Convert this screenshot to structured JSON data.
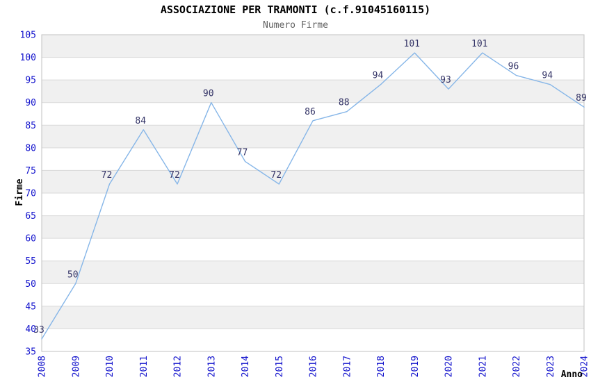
{
  "header": {
    "title": "ASSOCIAZIONE PER TRAMONTI (c.f.91045160115)",
    "subtitle": "Numero Firme"
  },
  "chart_data": {
    "type": "line",
    "title": "ASSOCIAZIONE PER TRAMONTI (c.f.91045160115)",
    "subtitle": "Numero Firme",
    "xlabel": "Anno",
    "ylabel": "Firme",
    "categories": [
      2008,
      2009,
      2010,
      2011,
      2012,
      2013,
      2014,
      2015,
      2016,
      2017,
      2018,
      2019,
      2020,
      2021,
      2022,
      2023,
      2024
    ],
    "values": [
      33,
      50,
      72,
      84,
      72,
      90,
      77,
      72,
      86,
      88,
      94,
      101,
      93,
      101,
      96,
      94,
      89
    ],
    "ylim": [
      35,
      105
    ],
    "ytick_step": 5,
    "grid": true,
    "bands": "alternating-horizontal",
    "legend": "none",
    "point_labels": true
  },
  "colors": {
    "title": "#000000",
    "subtitle": "#5f5f5f",
    "axis_title": "#000000",
    "tick_label": "#1111cc",
    "point_label": "#333366",
    "line": "#86b6e8",
    "band": "#f0f0f0",
    "grid": "#d9d9d9",
    "plot_border": "#c0c0c0",
    "plot_bg": "#ffffff"
  }
}
